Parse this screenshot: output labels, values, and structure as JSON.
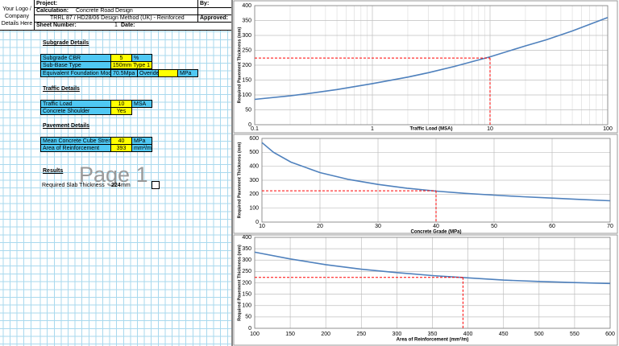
{
  "sheet": {
    "logo": "Your Logo / Company Details Here",
    "header": {
      "project_label": "Project:",
      "by_label": "By:",
      "calculation_label": "Calculation:",
      "calculation": "Concrete Road Design",
      "approved_label": "Approved:",
      "method": "TRRL 87 / HD28/06 Design Method (UK) - Reinforced",
      "sheet_number_label": "Sheet Number:",
      "sheet_number": 1,
      "date_label": "Date:"
    },
    "subgrade": {
      "title": "Subgrade Details",
      "cbr_label": "Subgrade CBR",
      "cbr": 5,
      "cbr_unit": "%",
      "subbase_label": "Sub-Base Type",
      "subbase": "150mm Type 1",
      "modulus_label": "Equivalent Foundation Modulus",
      "modulus": "70.5Mpa",
      "override_label": "Overide",
      "modulus_unit": "MPa"
    },
    "traffic": {
      "title": "Traffic Details",
      "load_label": "Traffic Load",
      "load": 10,
      "load_unit": "MSA",
      "shoulder_label": "Concrete Shoulder",
      "shoulder": "Yes"
    },
    "pavement": {
      "title": "Pavement Details",
      "strength_label": "Mean Concrete Cube Strength",
      "strength": 40,
      "strength_unit": "MPa",
      "reinforcement_label": "Area of Reinforcement",
      "reinforcement": 393,
      "reinforcement_unit": "mm²/m"
    },
    "results": {
      "title": "Results",
      "label": "Required Slab Thickness",
      "value": 224,
      "unit": "mm"
    },
    "watermark": "Page 1"
  },
  "chart_data": [
    {
      "type": "line",
      "xlabel": "Traffic Load (MSA)",
      "ylabel": "Required Pavement Thickness (mm)",
      "xlog": true,
      "x": [
        0.1,
        0.2,
        0.3,
        0.5,
        1,
        2,
        3,
        5,
        10,
        20,
        30,
        50,
        100
      ],
      "series": [
        {
          "color": "#4f81bd",
          "values": [
            85,
            97,
            106,
            118,
            138,
            160,
            175,
            196,
            228,
            265,
            285,
            315,
            360
          ]
        }
      ],
      "reference": {
        "x": 10,
        "y": 224,
        "color": "#ff0000"
      },
      "xlim": [
        0.1,
        100
      ],
      "xticks": [
        0.1,
        1,
        10,
        100
      ],
      "ylim": [
        0,
        400
      ],
      "yticks": [
        0,
        50,
        100,
        150,
        200,
        250,
        300,
        350,
        400
      ],
      "grid": true
    },
    {
      "type": "line",
      "xlabel": "Concrete Grade (MPa)",
      "ylabel": "Required Pavement Thickness (mm)",
      "xlog": false,
      "x": [
        10,
        12,
        15,
        20,
        25,
        30,
        35,
        40,
        45,
        50,
        55,
        60,
        65,
        70
      ],
      "series": [
        {
          "color": "#4f81bd",
          "values": [
            570,
            500,
            430,
            355,
            305,
            270,
            243,
            222,
            206,
            193,
            182,
            172,
            162,
            153
          ]
        }
      ],
      "reference": {
        "x": 40,
        "y": 224,
        "color": "#ff0000"
      },
      "xlim": [
        10,
        70
      ],
      "xticks": [
        10,
        20,
        30,
        40,
        50,
        60,
        70
      ],
      "ylim": [
        0,
        600
      ],
      "yticks": [
        0,
        100,
        200,
        300,
        400,
        500,
        600
      ],
      "grid": true
    },
    {
      "type": "line",
      "xlabel": "Area of Reinforcement (mm²/m)",
      "ylabel": "Required Pavement Thickness (mm)",
      "xlog": false,
      "x": [
        100,
        150,
        200,
        250,
        300,
        350,
        400,
        450,
        500,
        550,
        600
      ],
      "series": [
        {
          "color": "#4f81bd",
          "values": [
            335,
            305,
            280,
            260,
            245,
            232,
            222,
            212,
            206,
            201,
            197
          ]
        }
      ],
      "reference": {
        "x": 393,
        "y": 224,
        "color": "#ff0000"
      },
      "xlim": [
        100,
        600
      ],
      "xticks": [
        100,
        150,
        200,
        250,
        300,
        350,
        400,
        450,
        500,
        550,
        600
      ],
      "ylim": [
        0,
        400
      ],
      "yticks": [
        0,
        50,
        100,
        150,
        200,
        250,
        300,
        350,
        400
      ],
      "grid": true
    }
  ]
}
